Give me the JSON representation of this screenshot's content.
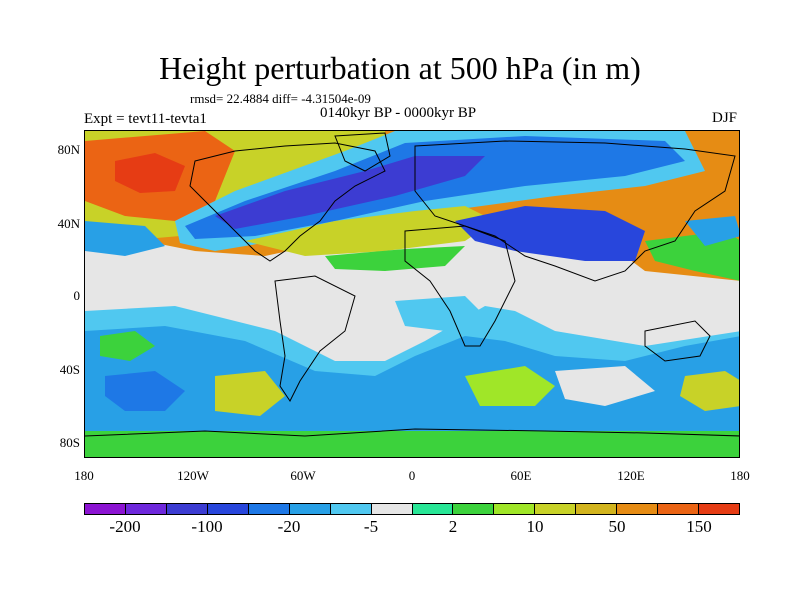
{
  "title": "Height perturbation at 500 hPa (in m)",
  "stats": "rmsd= 22.4884 diff= -4.31504e-09",
  "experiment": "Expt = tevt11-tevta1",
  "period": "0140kyr BP - 0000kyr BP",
  "season": "DJF",
  "lat_labels": [
    "80N",
    "40N",
    "0",
    "40S",
    "80S"
  ],
  "lon_labels": [
    "180",
    "120W",
    "60W",
    "0",
    "60E",
    "120E",
    "180"
  ],
  "colorbar": {
    "colors": [
      "#8c14d2",
      "#6e28dc",
      "#3c3cd2",
      "#2846dc",
      "#1e78e6",
      "#28a0e6",
      "#50c8f0",
      "#e6e6e6",
      "#28e696",
      "#3cd23c",
      "#a0e628",
      "#c8d228",
      "#d2b41e",
      "#e68c14",
      "#eb6414",
      "#e63c14"
    ],
    "labels": [
      "-200",
      "-100",
      "-20",
      "-5",
      "2",
      "10",
      "50",
      "150"
    ]
  },
  "map_colors": {
    "background": "#e6e6e6",
    "coastline": "#000000"
  }
}
